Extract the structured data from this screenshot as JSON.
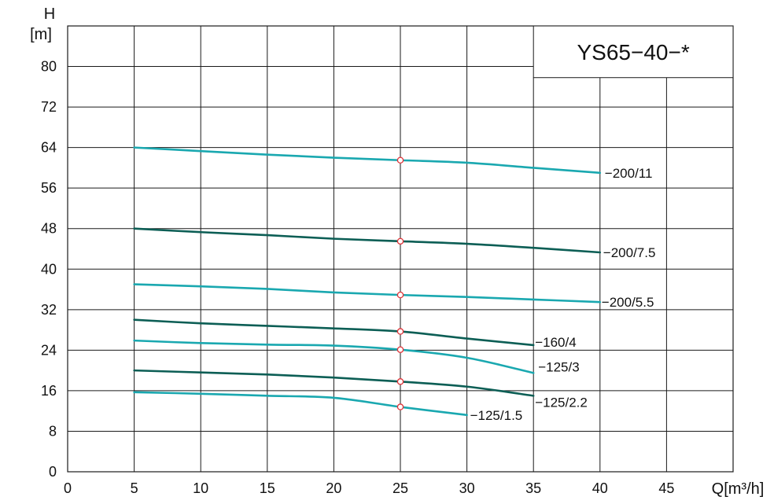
{
  "chart_data": {
    "type": "line",
    "title": "YS65−40−*",
    "xlabel": "Q[m³/h]",
    "ylabel_top": "H",
    "ylabel_unit": "[m]",
    "xlim": [
      0,
      50
    ],
    "ylim": [
      0,
      88
    ],
    "x_ticks": [
      0,
      5,
      10,
      15,
      20,
      25,
      30,
      35,
      40,
      45
    ],
    "y_ticks": [
      0,
      8,
      16,
      24,
      32,
      40,
      48,
      56,
      64,
      72,
      80
    ],
    "grid": true,
    "colors": {
      "teal": "#1aa8b0",
      "dark": "#0c5e55",
      "marker": "#e0353a"
    },
    "series": [
      {
        "name": "−200/11",
        "color": "teal",
        "x": [
          5,
          10,
          15,
          20,
          25,
          30,
          35,
          40
        ],
        "y": [
          64,
          63.3,
          62.6,
          62,
          61.5,
          61,
          60,
          59
        ],
        "marker": [
          25,
          61.5
        ]
      },
      {
        "name": "−200/7.5",
        "color": "dark",
        "x": [
          5,
          10,
          15,
          20,
          25,
          30,
          35,
          40
        ],
        "y": [
          48,
          47.3,
          46.7,
          46,
          45.5,
          45,
          44.2,
          43.3
        ],
        "marker": [
          25,
          45.5
        ]
      },
      {
        "name": "−200/5.5",
        "color": "teal",
        "x": [
          5,
          10,
          15,
          20,
          25,
          30,
          35,
          40
        ],
        "y": [
          37,
          36.6,
          36.1,
          35.4,
          34.9,
          34.5,
          34,
          33.5
        ],
        "marker": [
          25,
          34.9
        ]
      },
      {
        "name": "−160/4",
        "color": "dark",
        "x": [
          5,
          10,
          15,
          20,
          25,
          30,
          35
        ],
        "y": [
          30,
          29.3,
          28.8,
          28.3,
          27.7,
          26.3,
          25
        ],
        "marker": [
          25,
          27.7
        ]
      },
      {
        "name": "−125/3",
        "color": "teal",
        "x": [
          5,
          10,
          15,
          20,
          25,
          30,
          35
        ],
        "y": [
          25.9,
          25.4,
          25.1,
          24.9,
          24.1,
          22.5,
          19.5
        ],
        "marker": [
          25,
          24.1
        ]
      },
      {
        "name": "−125/2.2",
        "color": "dark",
        "x": [
          5,
          10,
          15,
          20,
          25,
          30,
          35
        ],
        "y": [
          20,
          19.6,
          19.2,
          18.6,
          17.8,
          16.8,
          15
        ],
        "marker": [
          25,
          17.8
        ]
      },
      {
        "name": "−125/1.5",
        "color": "teal",
        "x": [
          5,
          10,
          15,
          20,
          25,
          30
        ],
        "y": [
          15.7,
          15.4,
          15,
          14.6,
          12.8,
          11.2
        ],
        "marker": [
          25,
          12.8
        ]
      }
    ]
  }
}
